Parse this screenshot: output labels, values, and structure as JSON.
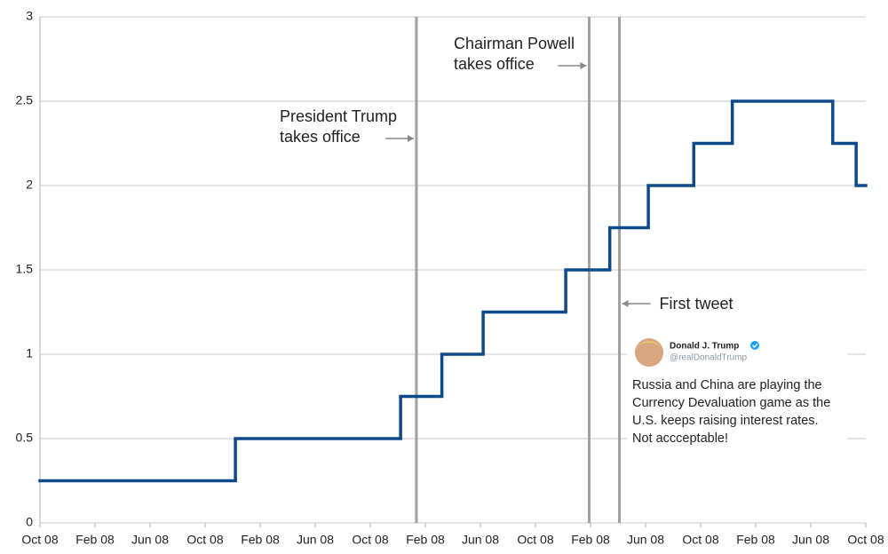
{
  "chart_data": {
    "type": "step",
    "x": [
      0,
      14.2,
      26.2,
      29.2,
      32.2,
      38.2,
      41.4,
      44.2,
      47.5,
      50.3,
      57.6,
      59.3
    ],
    "values": [
      0.25,
      0.5,
      0.75,
      1,
      1.25,
      1.5,
      1.75,
      2,
      2.25,
      2.5,
      2.25,
      2
    ],
    "color": "#0e4a8a",
    "xlim": [
      0,
      60
    ],
    "xticks": [
      {
        "value": 0,
        "label": "Oct 08"
      },
      {
        "value": 4,
        "label": "Feb 08"
      },
      {
        "value": 8,
        "label": "Jun 08"
      },
      {
        "value": 12,
        "label": "Oct 08"
      },
      {
        "value": 16,
        "label": "Feb 08"
      },
      {
        "value": 20,
        "label": "Jun 08"
      },
      {
        "value": 24,
        "label": "Oct 08"
      },
      {
        "value": 28,
        "label": "Feb 08"
      },
      {
        "value": 32,
        "label": "Jun 08"
      },
      {
        "value": 36,
        "label": "Oct 08"
      },
      {
        "value": 40,
        "label": "Feb 08"
      },
      {
        "value": 44,
        "label": "Jun 08"
      },
      {
        "value": 48,
        "label": "Oct 08"
      },
      {
        "value": 52,
        "label": "Feb 08"
      },
      {
        "value": 56,
        "label": "Jun 08"
      },
      {
        "value": 60,
        "label": "Oct 08"
      }
    ],
    "ylim": [
      0,
      3
    ],
    "yticks": [
      0,
      0.5,
      1,
      1.5,
      2,
      2.5,
      3
    ],
    "grid": true,
    "events": [
      {
        "x": 27.35,
        "text": [
          "President Trump",
          "takes office"
        ]
      },
      {
        "x": 39.9,
        "text": [
          "Chairman Powell",
          "takes office"
        ]
      },
      {
        "x": 42.1,
        "text": [
          "First tweet"
        ]
      }
    ],
    "tweet": {
      "name": "Donald J. Trump",
      "handle": "@realDonaldTrump",
      "text": [
        "Russia and China are playing the",
        "Currency Devaluation game as the",
        "U.S. keeps raising interest rates.",
        "Not accceptable!"
      ]
    }
  }
}
